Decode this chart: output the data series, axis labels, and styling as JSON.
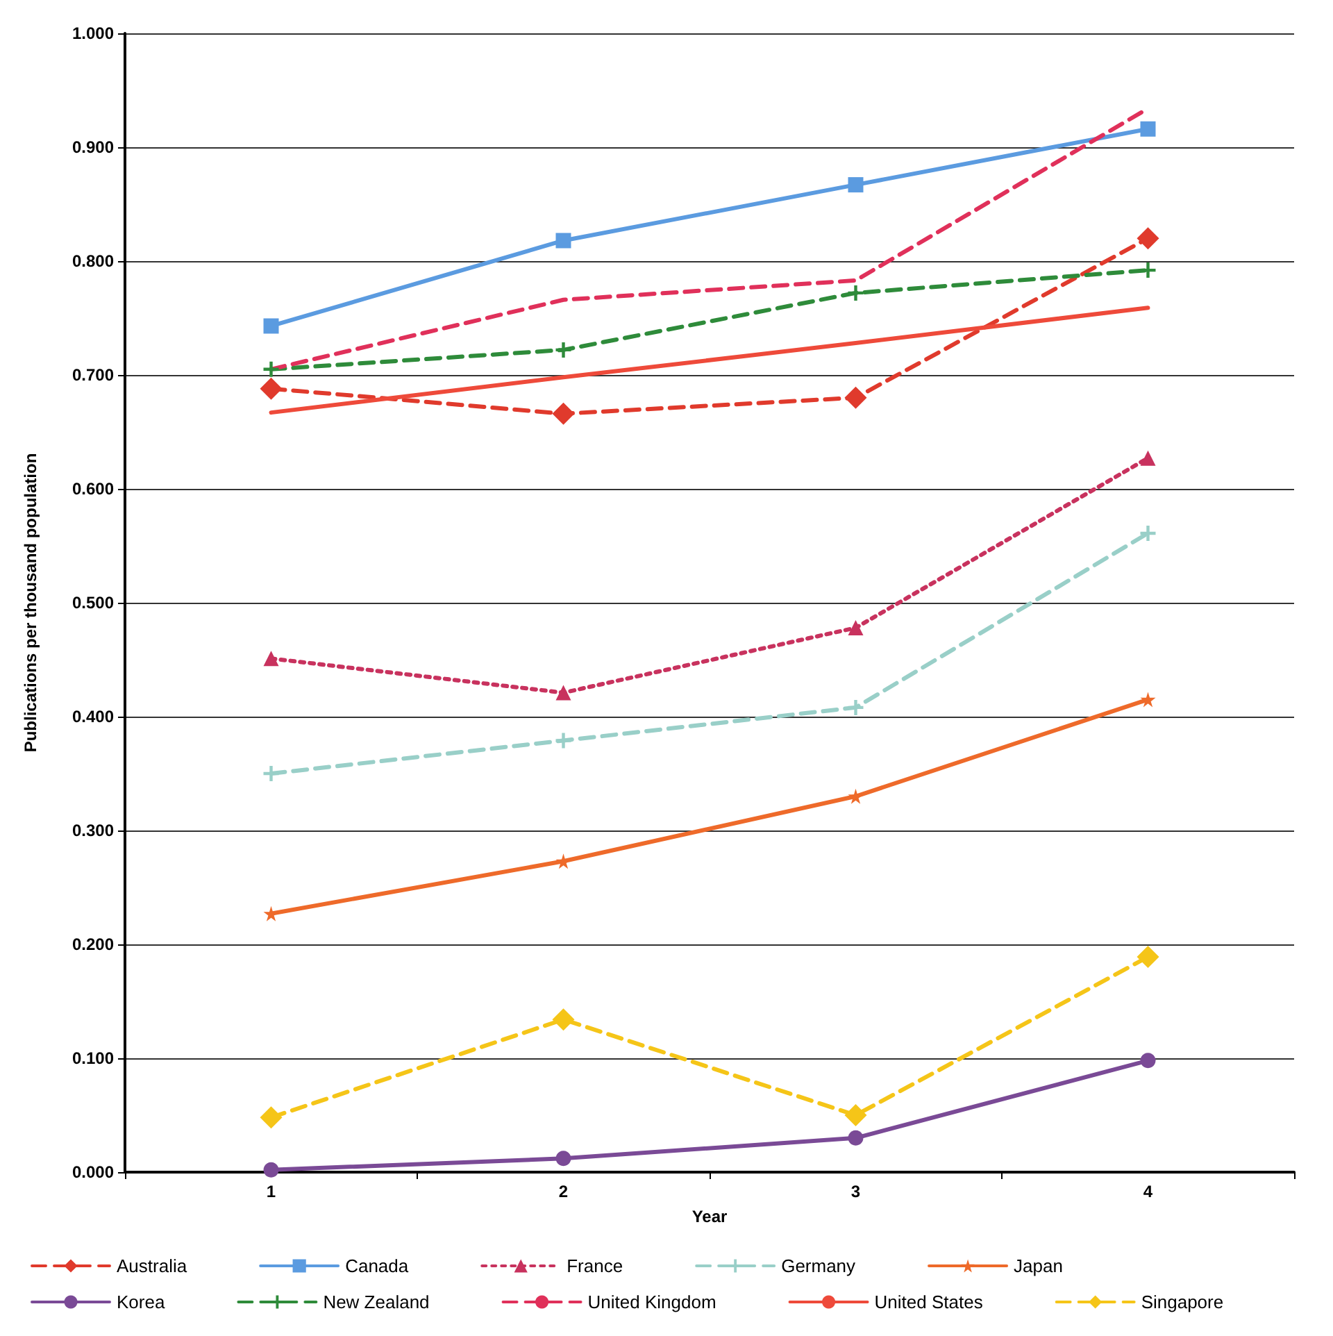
{
  "chart_data": {
    "type": "line",
    "xlabel": "Year",
    "ylabel": "Publications per thousand population",
    "categories": [
      "1",
      "2",
      "3",
      "4"
    ],
    "ylim": [
      0,
      1
    ],
    "yticks": [
      {
        "value": 0,
        "label": "0.000"
      },
      {
        "value": 0.1,
        "label": "0.100"
      },
      {
        "value": 0.2,
        "label": "0.200"
      },
      {
        "value": 0.3,
        "label": "0.300"
      },
      {
        "value": 0.4,
        "label": "0.400"
      },
      {
        "value": 0.5,
        "label": "0.500"
      },
      {
        "value": 0.6,
        "label": "0.600"
      },
      {
        "value": 0.7,
        "label": "0.700"
      },
      {
        "value": 0.8,
        "label": "0.800"
      },
      {
        "value": 0.9,
        "label": "0.900"
      },
      {
        "value": 1,
        "label": "1.000"
      }
    ],
    "grid": "y",
    "legend": "bottom",
    "series": [
      {
        "name": "Australia",
        "color": "#e03a2c",
        "marker": "diamond",
        "line_style": "dashed",
        "values": [
          0.688,
          0.666,
          0.68,
          0.82
        ]
      },
      {
        "name": "Canada",
        "color": "#5b9be0",
        "marker": "square",
        "line_style": "solid",
        "values": [
          0.743,
          0.818,
          0.867,
          0.916
        ]
      },
      {
        "name": "France",
        "color": "#c8325e",
        "marker": "triangle",
        "line_style": "dotted",
        "values": [
          0.451,
          0.421,
          0.478,
          0.627
        ]
      },
      {
        "name": "Germany",
        "color": "#99cfc8",
        "marker": "cross",
        "line_style": "dashed",
        "values": [
          0.35,
          0.379,
          0.408,
          0.561
        ]
      },
      {
        "name": "Japan",
        "color": "#ee6a2a",
        "marker": "star",
        "line_style": "solid",
        "values": [
          0.227,
          0.273,
          0.33,
          0.415
        ]
      },
      {
        "name": "Korea",
        "color": "#7a4a96",
        "marker": "circle",
        "line_style": "solid",
        "values": [
          0.002,
          0.012,
          0.03,
          0.098
        ]
      },
      {
        "name": "New Zealand",
        "color": "#2e8b3a",
        "marker": "cross",
        "line_style": "dashed",
        "values": [
          0.705,
          0.722,
          0.772,
          0.792
        ]
      },
      {
        "name": "United Kingdom",
        "color": "#e0305a",
        "marker": "none",
        "line_style": "dashed",
        "values": [
          0.705,
          0.766,
          0.783,
          0.934
        ]
      },
      {
        "name": "United States",
        "color": "#ee4a3a",
        "marker": "none",
        "line_style": "solid",
        "values": [
          0.667,
          0.698,
          0.728,
          0.759
        ]
      },
      {
        "name": "Singapore",
        "color": "#f5c518",
        "marker": "diamond",
        "line_style": "dashed",
        "values": [
          0.048,
          0.134,
          0.05,
          0.189
        ]
      }
    ]
  }
}
